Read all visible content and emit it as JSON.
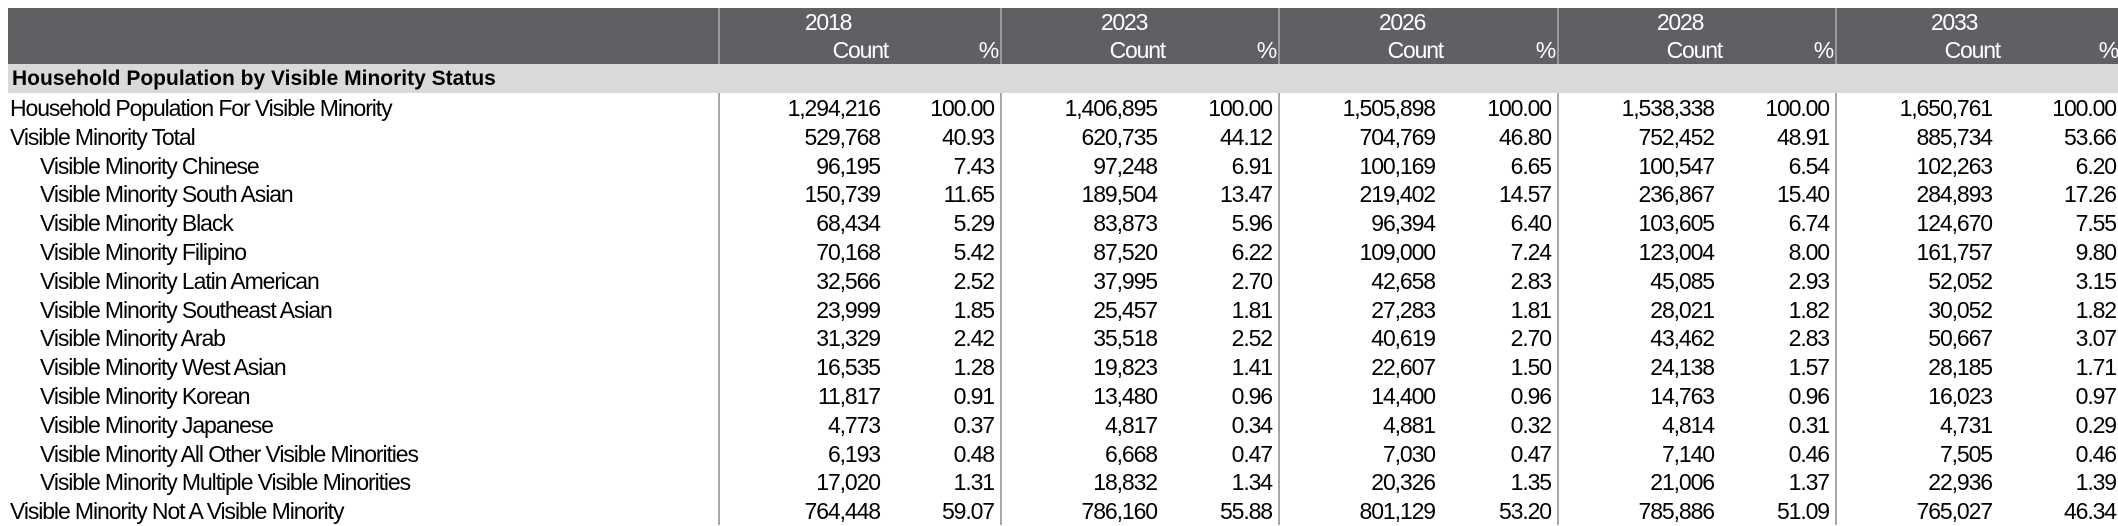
{
  "header": {
    "years": [
      "2018",
      "2023",
      "2026",
      "2028",
      "2033"
    ],
    "count_label": "Count",
    "pct_label": "%"
  },
  "section": {
    "title": "Household Population by Visible Minority Status"
  },
  "rows": [
    {
      "label": "Household Population For Visible Minority",
      "indent": false,
      "values": [
        "1,294,216",
        "100.00",
        "1,406,895",
        "100.00",
        "1,505,898",
        "100.00",
        "1,538,338",
        "100.00",
        "1,650,761",
        "100.00"
      ]
    },
    {
      "label": "Visible Minority Total",
      "indent": false,
      "values": [
        "529,768",
        "40.93",
        "620,735",
        "44.12",
        "704,769",
        "46.80",
        "752,452",
        "48.91",
        "885,734",
        "53.66"
      ]
    },
    {
      "label": "Visible Minority Chinese",
      "indent": true,
      "values": [
        "96,195",
        "7.43",
        "97,248",
        "6.91",
        "100,169",
        "6.65",
        "100,547",
        "6.54",
        "102,263",
        "6.20"
      ]
    },
    {
      "label": "Visible Minority South Asian",
      "indent": true,
      "values": [
        "150,739",
        "11.65",
        "189,504",
        "13.47",
        "219,402",
        "14.57",
        "236,867",
        "15.40",
        "284,893",
        "17.26"
      ]
    },
    {
      "label": "Visible Minority Black",
      "indent": true,
      "values": [
        "68,434",
        "5.29",
        "83,873",
        "5.96",
        "96,394",
        "6.40",
        "103,605",
        "6.74",
        "124,670",
        "7.55"
      ]
    },
    {
      "label": "Visible Minority Filipino",
      "indent": true,
      "values": [
        "70,168",
        "5.42",
        "87,520",
        "6.22",
        "109,000",
        "7.24",
        "123,004",
        "8.00",
        "161,757",
        "9.80"
      ]
    },
    {
      "label": "Visible Minority Latin American",
      "indent": true,
      "values": [
        "32,566",
        "2.52",
        "37,995",
        "2.70",
        "42,658",
        "2.83",
        "45,085",
        "2.93",
        "52,052",
        "3.15"
      ]
    },
    {
      "label": "Visible Minority Southeast Asian",
      "indent": true,
      "values": [
        "23,999",
        "1.85",
        "25,457",
        "1.81",
        "27,283",
        "1.81",
        "28,021",
        "1.82",
        "30,052",
        "1.82"
      ]
    },
    {
      "label": "Visible Minority Arab",
      "indent": true,
      "values": [
        "31,329",
        "2.42",
        "35,518",
        "2.52",
        "40,619",
        "2.70",
        "43,462",
        "2.83",
        "50,667",
        "3.07"
      ]
    },
    {
      "label": "Visible Minority West Asian",
      "indent": true,
      "values": [
        "16,535",
        "1.28",
        "19,823",
        "1.41",
        "22,607",
        "1.50",
        "24,138",
        "1.57",
        "28,185",
        "1.71"
      ]
    },
    {
      "label": "Visible Minority Korean",
      "indent": true,
      "values": [
        "11,817",
        "0.91",
        "13,480",
        "0.96",
        "14,400",
        "0.96",
        "14,763",
        "0.96",
        "16,023",
        "0.97"
      ]
    },
    {
      "label": "Visible Minority Japanese",
      "indent": true,
      "values": [
        "4,773",
        "0.37",
        "4,817",
        "0.34",
        "4,881",
        "0.32",
        "4,814",
        "0.31",
        "4,731",
        "0.29"
      ]
    },
    {
      "label": "Visible Minority All Other Visible Minorities",
      "indent": true,
      "values": [
        "6,193",
        "0.48",
        "6,668",
        "0.47",
        "7,030",
        "0.47",
        "7,140",
        "0.46",
        "7,505",
        "0.46"
      ]
    },
    {
      "label": "Visible Minority Multiple Visible Minorities",
      "indent": true,
      "values": [
        "17,020",
        "1.31",
        "18,832",
        "1.34",
        "20,326",
        "1.35",
        "21,006",
        "1.37",
        "22,936",
        "1.39"
      ]
    },
    {
      "label": "Visible Minority Not A Visible Minority",
      "indent": false,
      "values": [
        "764,448",
        "59.07",
        "786,160",
        "55.88",
        "801,129",
        "53.20",
        "785,886",
        "51.09",
        "765,027",
        "46.34"
      ]
    }
  ]
}
